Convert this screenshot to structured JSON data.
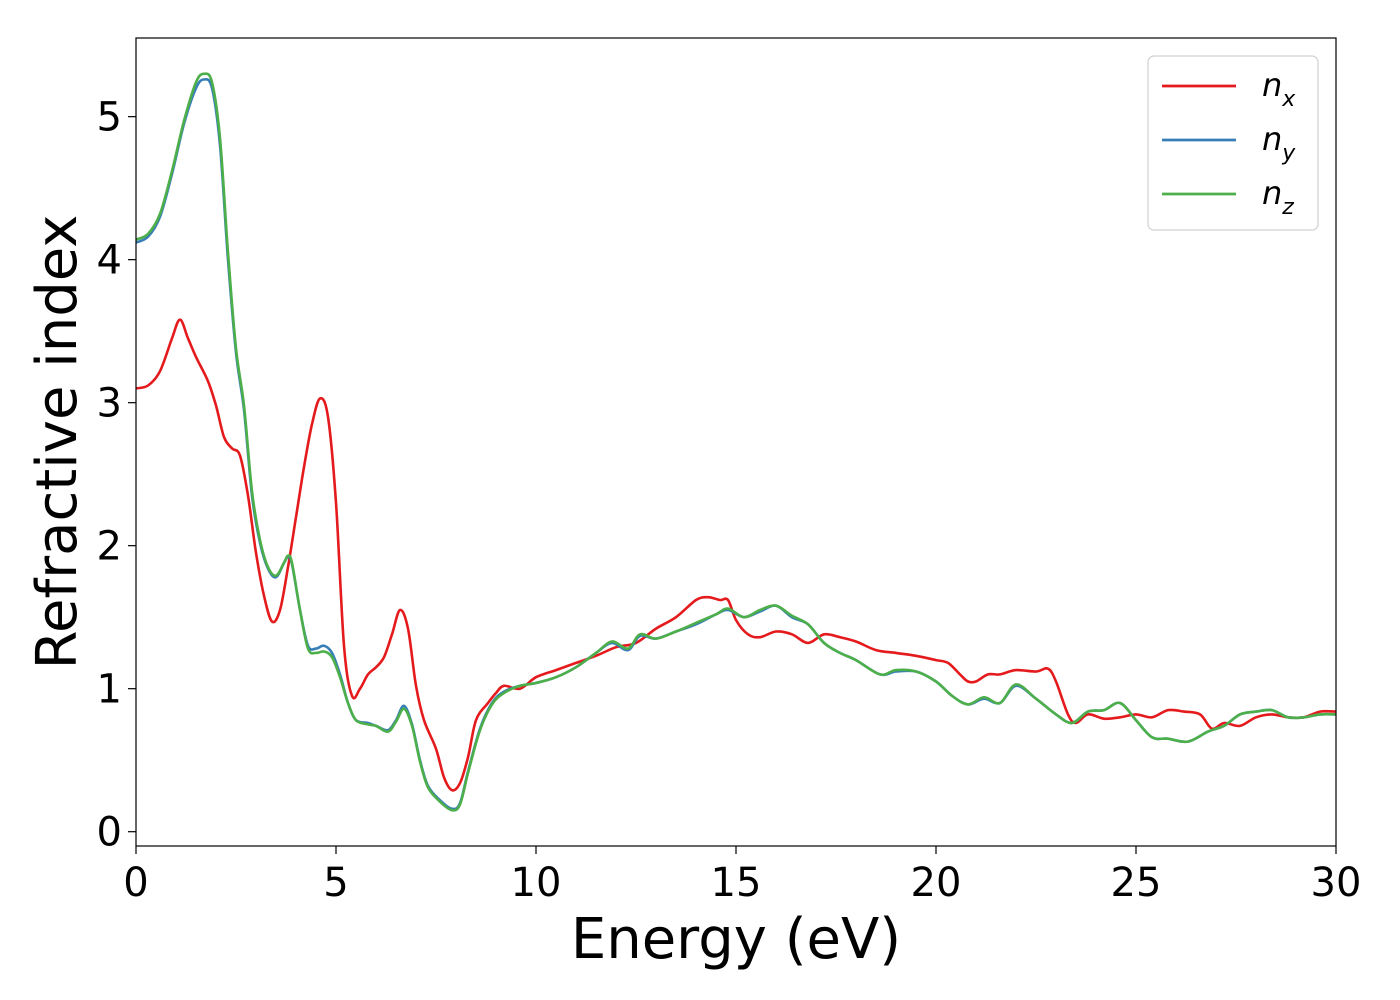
{
  "chart_data": {
    "type": "line",
    "title": "",
    "xlabel": "Energy (eV)",
    "ylabel": "Refractive index",
    "xlim": [
      0,
      30
    ],
    "ylim": [
      -0.1,
      5.55
    ],
    "xticks": [
      0,
      5,
      10,
      15,
      20,
      25,
      30
    ],
    "yticks": [
      0,
      1,
      2,
      3,
      4,
      5
    ],
    "xtick_labels": [
      "0",
      "5",
      "10",
      "15",
      "20",
      "25",
      "30"
    ],
    "ytick_labels": [
      "0",
      "1",
      "2",
      "3",
      "4",
      "5"
    ],
    "grid": false,
    "legend_position": "top-right",
    "series": [
      {
        "name": "n_x",
        "label_main": "n",
        "label_sub": "x",
        "color": "#e41a1c",
        "points": [
          [
            0,
            3.1
          ],
          [
            0.3,
            3.12
          ],
          [
            0.6,
            3.22
          ],
          [
            0.9,
            3.45
          ],
          [
            1.1,
            3.58
          ],
          [
            1.3,
            3.45
          ],
          [
            1.5,
            3.32
          ],
          [
            1.8,
            3.15
          ],
          [
            2.0,
            2.98
          ],
          [
            2.2,
            2.76
          ],
          [
            2.4,
            2.68
          ],
          [
            2.6,
            2.63
          ],
          [
            2.8,
            2.35
          ],
          [
            3.0,
            1.95
          ],
          [
            3.2,
            1.65
          ],
          [
            3.4,
            1.47
          ],
          [
            3.6,
            1.55
          ],
          [
            3.8,
            1.85
          ],
          [
            4.0,
            2.2
          ],
          [
            4.2,
            2.55
          ],
          [
            4.4,
            2.85
          ],
          [
            4.6,
            3.03
          ],
          [
            4.8,
            2.9
          ],
          [
            5.0,
            2.3
          ],
          [
            5.2,
            1.3
          ],
          [
            5.4,
            0.95
          ],
          [
            5.6,
            1.0
          ],
          [
            5.8,
            1.1
          ],
          [
            6.0,
            1.15
          ],
          [
            6.2,
            1.22
          ],
          [
            6.4,
            1.38
          ],
          [
            6.6,
            1.55
          ],
          [
            6.8,
            1.42
          ],
          [
            7.0,
            1.02
          ],
          [
            7.2,
            0.78
          ],
          [
            7.5,
            0.58
          ],
          [
            7.7,
            0.38
          ],
          [
            7.9,
            0.29
          ],
          [
            8.1,
            0.34
          ],
          [
            8.3,
            0.52
          ],
          [
            8.5,
            0.78
          ],
          [
            8.8,
            0.9
          ],
          [
            9.0,
            0.97
          ],
          [
            9.2,
            1.02
          ],
          [
            9.6,
            1.0
          ],
          [
            10.0,
            1.08
          ],
          [
            10.5,
            1.13
          ],
          [
            11.0,
            1.18
          ],
          [
            11.5,
            1.23
          ],
          [
            12.0,
            1.29
          ],
          [
            12.5,
            1.32
          ],
          [
            13.0,
            1.42
          ],
          [
            13.5,
            1.5
          ],
          [
            14.0,
            1.62
          ],
          [
            14.3,
            1.64
          ],
          [
            14.6,
            1.62
          ],
          [
            14.8,
            1.62
          ],
          [
            15.0,
            1.48
          ],
          [
            15.3,
            1.38
          ],
          [
            15.6,
            1.36
          ],
          [
            16.0,
            1.4
          ],
          [
            16.4,
            1.38
          ],
          [
            16.8,
            1.32
          ],
          [
            17.2,
            1.38
          ],
          [
            17.6,
            1.36
          ],
          [
            18.0,
            1.33
          ],
          [
            18.5,
            1.27
          ],
          [
            19.0,
            1.25
          ],
          [
            19.5,
            1.23
          ],
          [
            20.0,
            1.2
          ],
          [
            20.3,
            1.18
          ],
          [
            20.6,
            1.1
          ],
          [
            20.8,
            1.05
          ],
          [
            21.0,
            1.05
          ],
          [
            21.3,
            1.1
          ],
          [
            21.6,
            1.1
          ],
          [
            22.0,
            1.13
          ],
          [
            22.5,
            1.12
          ],
          [
            22.8,
            1.14
          ],
          [
            23.0,
            1.05
          ],
          [
            23.3,
            0.82
          ],
          [
            23.5,
            0.76
          ],
          [
            23.8,
            0.82
          ],
          [
            24.2,
            0.79
          ],
          [
            24.6,
            0.8
          ],
          [
            25.0,
            0.82
          ],
          [
            25.4,
            0.8
          ],
          [
            25.8,
            0.85
          ],
          [
            26.2,
            0.84
          ],
          [
            26.6,
            0.82
          ],
          [
            26.9,
            0.72
          ],
          [
            27.2,
            0.76
          ],
          [
            27.6,
            0.74
          ],
          [
            28.0,
            0.8
          ],
          [
            28.4,
            0.82
          ],
          [
            28.8,
            0.8
          ],
          [
            29.2,
            0.8
          ],
          [
            29.6,
            0.84
          ],
          [
            30.0,
            0.84
          ]
        ]
      },
      {
        "name": "n_y",
        "label_main": "n",
        "label_sub": "y",
        "color": "#377eb8",
        "points": [
          [
            0,
            4.12
          ],
          [
            0.3,
            4.16
          ],
          [
            0.6,
            4.3
          ],
          [
            0.9,
            4.6
          ],
          [
            1.2,
            4.95
          ],
          [
            1.5,
            5.2
          ],
          [
            1.7,
            5.26
          ],
          [
            1.9,
            5.2
          ],
          [
            2.1,
            4.8
          ],
          [
            2.3,
            4.0
          ],
          [
            2.5,
            3.35
          ],
          [
            2.7,
            2.95
          ],
          [
            2.9,
            2.35
          ],
          [
            3.1,
            2.02
          ],
          [
            3.3,
            1.84
          ],
          [
            3.5,
            1.78
          ],
          [
            3.7,
            1.88
          ],
          [
            3.8,
            1.92
          ],
          [
            3.9,
            1.87
          ],
          [
            4.1,
            1.55
          ],
          [
            4.3,
            1.3
          ],
          [
            4.5,
            1.28
          ],
          [
            4.7,
            1.3
          ],
          [
            4.9,
            1.25
          ],
          [
            5.1,
            1.1
          ],
          [
            5.3,
            0.9
          ],
          [
            5.5,
            0.78
          ],
          [
            5.8,
            0.76
          ],
          [
            6.0,
            0.74
          ],
          [
            6.3,
            0.71
          ],
          [
            6.5,
            0.78
          ],
          [
            6.7,
            0.88
          ],
          [
            6.9,
            0.75
          ],
          [
            7.1,
            0.5
          ],
          [
            7.3,
            0.32
          ],
          [
            7.6,
            0.22
          ],
          [
            7.9,
            0.16
          ],
          [
            8.1,
            0.2
          ],
          [
            8.3,
            0.42
          ],
          [
            8.6,
            0.72
          ],
          [
            8.9,
            0.9
          ],
          [
            9.2,
            0.98
          ],
          [
            9.6,
            1.02
          ],
          [
            10.0,
            1.04
          ],
          [
            10.5,
            1.08
          ],
          [
            11.0,
            1.15
          ],
          [
            11.5,
            1.25
          ],
          [
            11.9,
            1.32
          ],
          [
            12.3,
            1.27
          ],
          [
            12.6,
            1.37
          ],
          [
            13.0,
            1.35
          ],
          [
            13.5,
            1.4
          ],
          [
            14.0,
            1.45
          ],
          [
            14.5,
            1.52
          ],
          [
            14.8,
            1.55
          ],
          [
            15.2,
            1.5
          ],
          [
            15.6,
            1.54
          ],
          [
            16.0,
            1.58
          ],
          [
            16.4,
            1.5
          ],
          [
            16.8,
            1.45
          ],
          [
            17.2,
            1.32
          ],
          [
            17.6,
            1.25
          ],
          [
            18.0,
            1.2
          ],
          [
            18.6,
            1.1
          ],
          [
            19.0,
            1.12
          ],
          [
            19.5,
            1.12
          ],
          [
            20.0,
            1.05
          ],
          [
            20.4,
            0.95
          ],
          [
            20.8,
            0.89
          ],
          [
            21.2,
            0.93
          ],
          [
            21.6,
            0.9
          ],
          [
            22.0,
            1.02
          ],
          [
            22.5,
            0.93
          ],
          [
            23.0,
            0.82
          ],
          [
            23.4,
            0.76
          ],
          [
            23.8,
            0.84
          ],
          [
            24.2,
            0.85
          ],
          [
            24.6,
            0.9
          ],
          [
            25.0,
            0.78
          ],
          [
            25.4,
            0.66
          ],
          [
            25.8,
            0.65
          ],
          [
            26.3,
            0.63
          ],
          [
            26.8,
            0.7
          ],
          [
            27.2,
            0.74
          ],
          [
            27.6,
            0.82
          ],
          [
            28.0,
            0.84
          ],
          [
            28.4,
            0.85
          ],
          [
            28.8,
            0.8
          ],
          [
            29.2,
            0.8
          ],
          [
            29.6,
            0.82
          ],
          [
            30.0,
            0.82
          ]
        ]
      },
      {
        "name": "n_z",
        "label_main": "n",
        "label_sub": "z",
        "color": "#4daf4a",
        "points": [
          [
            0,
            4.14
          ],
          [
            0.3,
            4.18
          ],
          [
            0.6,
            4.32
          ],
          [
            0.9,
            4.62
          ],
          [
            1.2,
            4.97
          ],
          [
            1.5,
            5.24
          ],
          [
            1.7,
            5.3
          ],
          [
            1.9,
            5.24
          ],
          [
            2.1,
            4.85
          ],
          [
            2.3,
            4.05
          ],
          [
            2.5,
            3.38
          ],
          [
            2.7,
            2.98
          ],
          [
            2.9,
            2.38
          ],
          [
            3.1,
            2.04
          ],
          [
            3.3,
            1.85
          ],
          [
            3.5,
            1.79
          ],
          [
            3.7,
            1.88
          ],
          [
            3.8,
            1.93
          ],
          [
            3.9,
            1.88
          ],
          [
            4.1,
            1.55
          ],
          [
            4.3,
            1.28
          ],
          [
            4.5,
            1.25
          ],
          [
            4.7,
            1.26
          ],
          [
            4.9,
            1.22
          ],
          [
            5.1,
            1.08
          ],
          [
            5.3,
            0.9
          ],
          [
            5.5,
            0.78
          ],
          [
            5.8,
            0.75
          ],
          [
            6.0,
            0.74
          ],
          [
            6.3,
            0.7
          ],
          [
            6.5,
            0.77
          ],
          [
            6.7,
            0.86
          ],
          [
            6.9,
            0.74
          ],
          [
            7.1,
            0.49
          ],
          [
            7.3,
            0.31
          ],
          [
            7.6,
            0.21
          ],
          [
            7.9,
            0.15
          ],
          [
            8.1,
            0.19
          ],
          [
            8.3,
            0.41
          ],
          [
            8.6,
            0.71
          ],
          [
            8.9,
            0.89
          ],
          [
            9.2,
            0.97
          ],
          [
            9.6,
            1.02
          ],
          [
            10.0,
            1.04
          ],
          [
            10.5,
            1.08
          ],
          [
            11.0,
            1.15
          ],
          [
            11.5,
            1.25
          ],
          [
            11.9,
            1.33
          ],
          [
            12.3,
            1.28
          ],
          [
            12.6,
            1.38
          ],
          [
            13.0,
            1.35
          ],
          [
            13.5,
            1.4
          ],
          [
            14.0,
            1.46
          ],
          [
            14.5,
            1.52
          ],
          [
            14.8,
            1.56
          ],
          [
            15.2,
            1.5
          ],
          [
            15.6,
            1.55
          ],
          [
            16.0,
            1.58
          ],
          [
            16.4,
            1.51
          ],
          [
            16.8,
            1.45
          ],
          [
            17.2,
            1.32
          ],
          [
            17.6,
            1.25
          ],
          [
            18.0,
            1.2
          ],
          [
            18.6,
            1.1
          ],
          [
            19.0,
            1.13
          ],
          [
            19.5,
            1.12
          ],
          [
            20.0,
            1.05
          ],
          [
            20.4,
            0.95
          ],
          [
            20.8,
            0.89
          ],
          [
            21.2,
            0.94
          ],
          [
            21.6,
            0.9
          ],
          [
            22.0,
            1.03
          ],
          [
            22.5,
            0.93
          ],
          [
            23.0,
            0.82
          ],
          [
            23.4,
            0.76
          ],
          [
            23.8,
            0.84
          ],
          [
            24.2,
            0.85
          ],
          [
            24.6,
            0.9
          ],
          [
            25.0,
            0.78
          ],
          [
            25.4,
            0.66
          ],
          [
            25.8,
            0.65
          ],
          [
            26.3,
            0.63
          ],
          [
            26.8,
            0.7
          ],
          [
            27.2,
            0.74
          ],
          [
            27.6,
            0.82
          ],
          [
            28.0,
            0.84
          ],
          [
            28.4,
            0.85
          ],
          [
            28.8,
            0.8
          ],
          [
            29.2,
            0.8
          ],
          [
            29.6,
            0.82
          ],
          [
            30.0,
            0.82
          ]
        ]
      }
    ]
  }
}
